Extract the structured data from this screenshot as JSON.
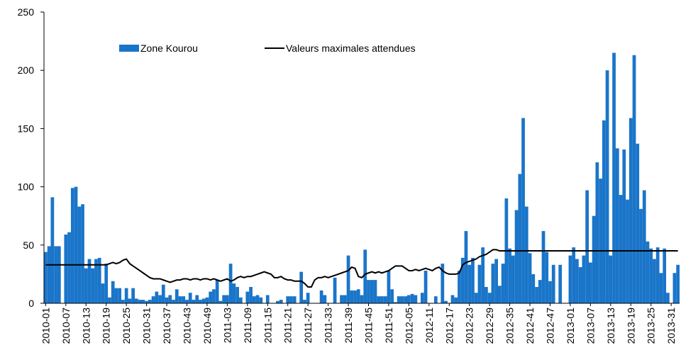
{
  "chart_data": {
    "type": "bar",
    "categories": [
      "2010-01",
      null,
      null,
      null,
      null,
      null,
      "2010-07",
      null,
      null,
      null,
      null,
      null,
      "2010-13",
      null,
      null,
      null,
      null,
      null,
      "2010-19",
      null,
      null,
      null,
      null,
      null,
      "2010-25",
      null,
      null,
      null,
      null,
      null,
      "2010-31",
      null,
      null,
      null,
      null,
      null,
      "2010-37",
      null,
      null,
      null,
      null,
      null,
      "2010-43",
      null,
      null,
      null,
      null,
      null,
      "2010-49",
      null,
      null,
      null,
      null,
      null,
      "2011-03",
      null,
      null,
      null,
      null,
      null,
      "2011-09",
      null,
      null,
      null,
      null,
      null,
      "2011-15",
      null,
      null,
      null,
      null,
      null,
      "2011-21",
      null,
      null,
      null,
      null,
      null,
      "2011-27",
      null,
      null,
      null,
      null,
      null,
      "2011-33",
      null,
      null,
      null,
      null,
      null,
      "2011-39",
      null,
      null,
      null,
      null,
      null,
      "2011-45",
      null,
      null,
      null,
      null,
      null,
      "2011-51",
      null,
      null,
      null,
      null,
      null,
      "2012-05",
      null,
      null,
      null,
      null,
      null,
      "2012-11",
      null,
      null,
      null,
      null,
      null,
      "2012-17",
      null,
      null,
      null,
      null,
      null,
      "2012-23",
      null,
      null,
      null,
      null,
      null,
      "2012-29",
      null,
      null,
      null,
      null,
      null,
      "2012-35",
      null,
      null,
      null,
      null,
      null,
      "2012-41",
      null,
      null,
      null,
      null,
      null,
      "2012-47",
      null,
      null,
      null,
      null,
      null,
      "2013-01",
      null,
      null,
      null,
      null,
      null,
      "2013-07",
      null,
      null,
      null,
      null,
      null,
      "2013-13",
      null,
      null,
      null,
      null,
      null,
      "2013-19",
      null,
      null,
      null,
      null,
      null,
      "2013-25",
      null,
      null,
      null,
      null,
      null,
      "2013-31",
      null,
      null
    ],
    "series": [
      {
        "name": "Zone Kourou",
        "color": "#1a75c9",
        "values": [
          44,
          49,
          91,
          49,
          49,
          0,
          59,
          61,
          99,
          100,
          83,
          85,
          30,
          38,
          30,
          38,
          39,
          17,
          34,
          5,
          19,
          13,
          13,
          3,
          13,
          4,
          13,
          4,
          3,
          3,
          2,
          3,
          6,
          10,
          7,
          16,
          5,
          7,
          3,
          12,
          6,
          6,
          3,
          9,
          3,
          7,
          3,
          4,
          5,
          10,
          12,
          20,
          2,
          7,
          7,
          34,
          17,
          14,
          5,
          0,
          10,
          14,
          6,
          7,
          5,
          0,
          7,
          0,
          0,
          2,
          3,
          0,
          6,
          6,
          6,
          0,
          27,
          3,
          9,
          0,
          0,
          0,
          11,
          7,
          0,
          0,
          22,
          0,
          7,
          7,
          41,
          11,
          11,
          12,
          7,
          46,
          20,
          20,
          20,
          6,
          6,
          6,
          28,
          12,
          1,
          6,
          6,
          6,
          7,
          8,
          7,
          0,
          9,
          28,
          0,
          0,
          6,
          0,
          34,
          2,
          0,
          7,
          5,
          28,
          39,
          62,
          33,
          39,
          9,
          33,
          48,
          14,
          9,
          34,
          38,
          15,
          34,
          90,
          47,
          41,
          80,
          111,
          159,
          83,
          43,
          25,
          14,
          20,
          62,
          44,
          19,
          33,
          0,
          33,
          0,
          0,
          41,
          48,
          38,
          31,
          41,
          97,
          35,
          75,
          121,
          107,
          157,
          200,
          41,
          215,
          133,
          93,
          132,
          89,
          159,
          213,
          137,
          81,
          97,
          53,
          47,
          38,
          48,
          26,
          47,
          9,
          0,
          26,
          33
        ]
      },
      {
        "name": "Valeurs maximales attendues",
        "color": "#000000",
        "type": "line",
        "values": [
          33,
          33,
          33,
          33,
          33,
          33,
          33,
          33,
          33,
          33,
          33,
          33,
          33,
          33,
          33,
          33,
          33,
          33,
          33,
          34,
          35,
          34,
          35,
          37,
          38,
          34,
          32,
          30,
          28,
          26,
          24,
          22,
          21,
          21,
          21,
          20,
          19,
          18,
          19,
          20,
          20,
          21,
          21,
          20,
          21,
          21,
          20,
          21,
          21,
          20,
          21,
          20,
          19,
          20,
          21,
          19,
          20,
          22,
          23,
          22,
          23,
          23,
          24,
          25,
          26,
          27,
          26,
          25,
          22,
          22,
          23,
          21,
          20,
          20,
          19,
          19,
          19,
          17,
          14,
          14,
          20,
          22,
          22,
          23,
          22,
          23,
          24,
          25,
          26,
          27,
          28,
          31,
          30,
          23,
          22,
          25,
          26,
          27,
          26,
          27,
          26,
          27,
          28,
          30,
          32,
          32,
          32,
          30,
          28,
          28,
          29,
          28,
          29,
          30,
          29,
          28,
          30,
          31,
          28,
          26,
          25,
          25,
          25,
          26,
          33,
          35,
          36,
          37,
          38,
          40,
          41,
          42,
          44,
          46,
          46,
          45,
          45,
          45,
          45,
          45,
          45,
          45,
          45,
          45,
          45,
          45,
          45,
          45,
          45,
          45,
          45,
          45,
          45,
          45,
          45,
          45,
          45,
          45,
          45,
          45,
          45,
          45,
          45,
          45,
          45,
          45,
          45,
          45,
          45,
          45,
          45,
          45,
          45,
          45,
          45,
          45,
          45,
          45,
          45,
          45,
          45,
          45,
          45,
          45,
          45,
          45,
          45,
          45,
          45
        ]
      }
    ],
    "ylim": [
      0,
      250
    ],
    "yticks": [
      0,
      50,
      100,
      150,
      200,
      250
    ],
    "grid": false,
    "legend": "top"
  }
}
